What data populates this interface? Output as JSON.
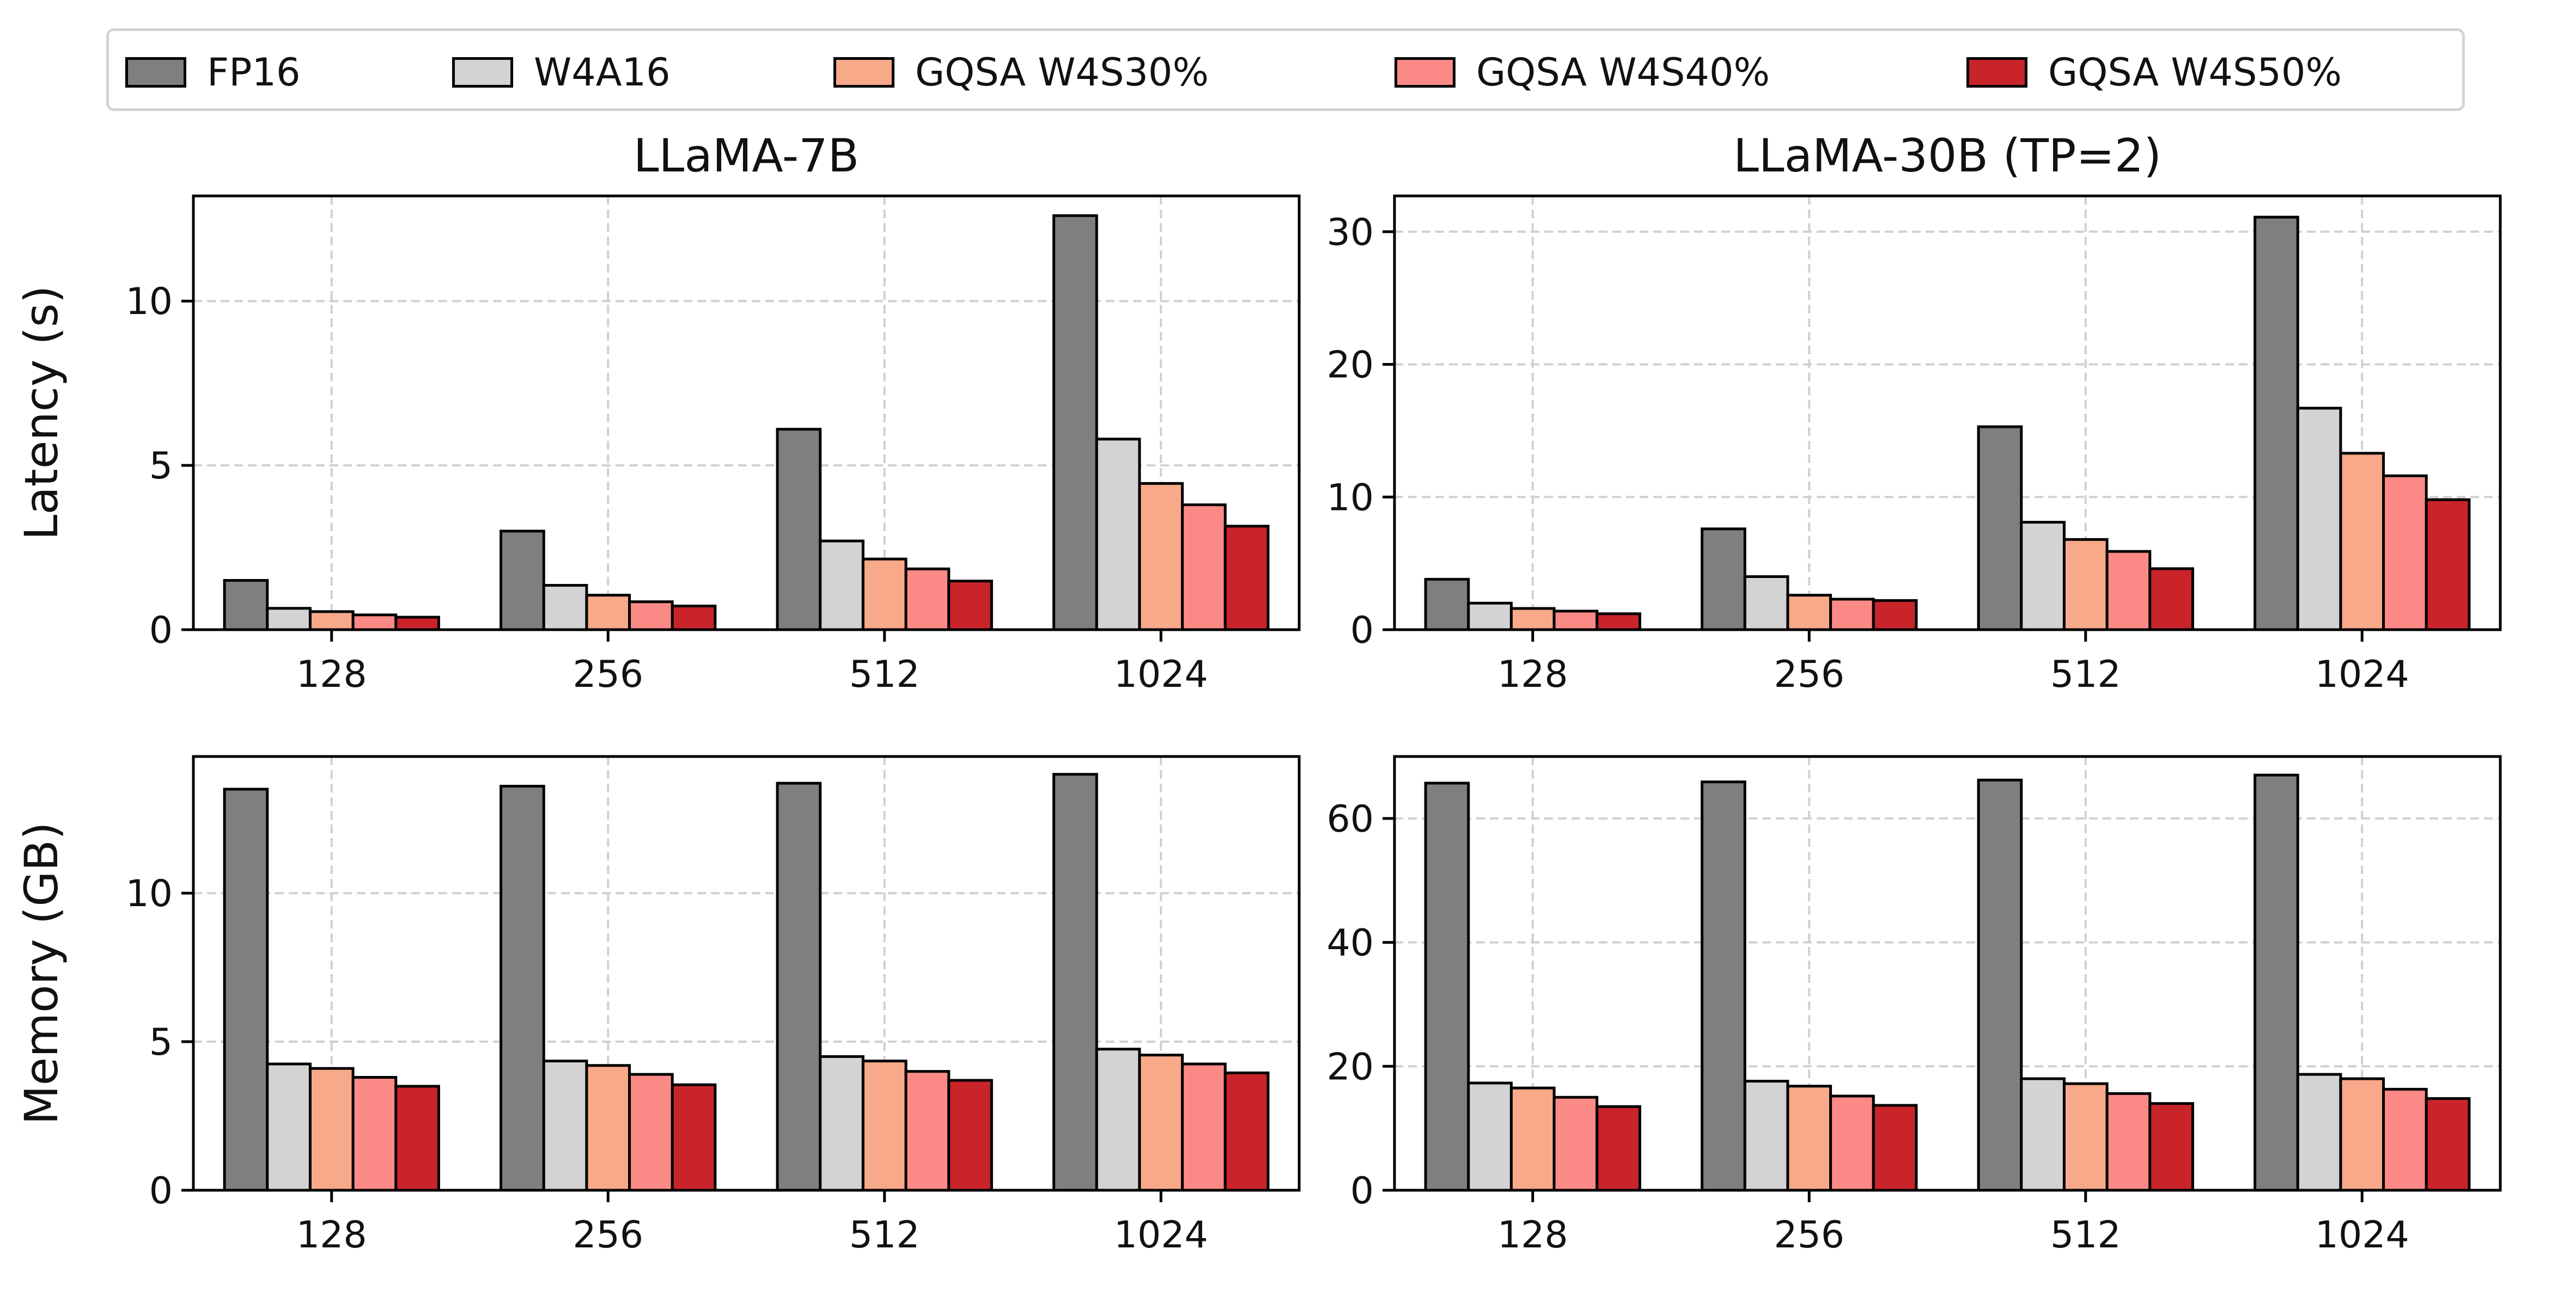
{
  "colors": {
    "FP16": "#7f7f7f",
    "W4A16": "#d3d3d3",
    "GQSA W4S30%": "#f7a98a",
    "GQSA W4S40%": "#fb8a86",
    "GQSA W4S50%": "#c9242a",
    "grid": "#d0d0d0",
    "edge": "#000000"
  },
  "legend": {
    "placement": "top-center",
    "items": [
      "FP16",
      "W4A16",
      "GQSA W4S30%",
      "GQSA W4S40%",
      "GQSA W4S50%"
    ]
  },
  "chart_data": [
    {
      "type": "bar",
      "title": "LLaMA-7B",
      "ylabel": "Latency (s)",
      "xlabel": "",
      "categories": [
        "128",
        "256",
        "512",
        "1024"
      ],
      "ylim": [
        0,
        13.2
      ],
      "yticks": [
        0,
        5,
        10
      ],
      "grid": true,
      "series": [
        {
          "name": "FP16",
          "values": [
            1.5,
            3.0,
            6.1,
            12.6
          ]
        },
        {
          "name": "W4A16",
          "values": [
            0.65,
            1.35,
            2.7,
            5.8
          ]
        },
        {
          "name": "GQSA W4S30%",
          "values": [
            0.55,
            1.05,
            2.15,
            4.45
          ]
        },
        {
          "name": "GQSA W4S40%",
          "values": [
            0.45,
            0.85,
            1.85,
            3.8
          ]
        },
        {
          "name": "GQSA W4S50%",
          "values": [
            0.38,
            0.72,
            1.48,
            3.15
          ]
        }
      ]
    },
    {
      "type": "bar",
      "title": "LLaMA-30B (TP=2)",
      "ylabel": "",
      "xlabel": "",
      "categories": [
        "128",
        "256",
        "512",
        "1024"
      ],
      "ylim": [
        0,
        32.7
      ],
      "yticks": [
        0,
        10,
        20,
        30
      ],
      "grid": true,
      "series": [
        {
          "name": "FP16",
          "values": [
            3.8,
            7.6,
            15.3,
            31.1
          ]
        },
        {
          "name": "W4A16",
          "values": [
            2.0,
            4.0,
            8.1,
            16.7
          ]
        },
        {
          "name": "GQSA W4S30%",
          "values": [
            1.6,
            2.6,
            6.8,
            13.3
          ]
        },
        {
          "name": "GQSA W4S40%",
          "values": [
            1.4,
            2.3,
            5.9,
            11.6
          ]
        },
        {
          "name": "GQSA W4S50%",
          "values": [
            1.2,
            2.2,
            4.6,
            9.8
          ]
        }
      ]
    },
    {
      "type": "bar",
      "title": "",
      "ylabel": "Memory (GB)",
      "xlabel": "",
      "categories": [
        "128",
        "256",
        "512",
        "1024"
      ],
      "ylim": [
        0,
        14.6
      ],
      "yticks": [
        0,
        5,
        10
      ],
      "grid": true,
      "series": [
        {
          "name": "FP16",
          "values": [
            13.5,
            13.6,
            13.7,
            14.0
          ]
        },
        {
          "name": "W4A16",
          "values": [
            4.25,
            4.35,
            4.5,
            4.75
          ]
        },
        {
          "name": "GQSA W4S30%",
          "values": [
            4.1,
            4.2,
            4.35,
            4.55
          ]
        },
        {
          "name": "GQSA W4S40%",
          "values": [
            3.8,
            3.9,
            4.0,
            4.25
          ]
        },
        {
          "name": "GQSA W4S50%",
          "values": [
            3.5,
            3.55,
            3.7,
            3.95
          ]
        }
      ]
    },
    {
      "type": "bar",
      "title": "",
      "ylabel": "",
      "xlabel": "",
      "categories": [
        "128",
        "256",
        "512",
        "1024"
      ],
      "ylim": [
        0,
        70
      ],
      "yticks": [
        0,
        20,
        40,
        60
      ],
      "grid": true,
      "series": [
        {
          "name": "FP16",
          "values": [
            65.7,
            65.9,
            66.2,
            67.0
          ]
        },
        {
          "name": "W4A16",
          "values": [
            17.3,
            17.6,
            18.0,
            18.7
          ]
        },
        {
          "name": "GQSA W4S30%",
          "values": [
            16.5,
            16.8,
            17.2,
            18.0
          ]
        },
        {
          "name": "GQSA W4S40%",
          "values": [
            15.0,
            15.2,
            15.6,
            16.3
          ]
        },
        {
          "name": "GQSA W4S50%",
          "values": [
            13.5,
            13.7,
            14.0,
            14.8
          ]
        }
      ]
    }
  ]
}
